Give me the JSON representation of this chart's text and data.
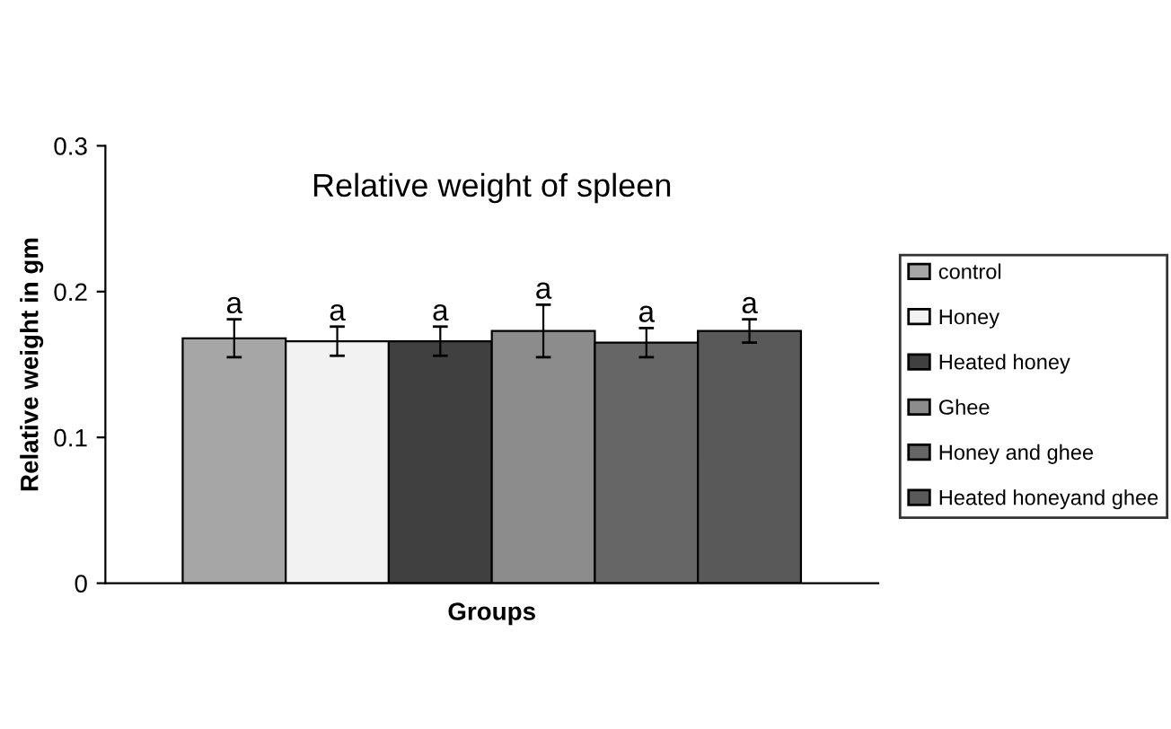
{
  "chart_data": {
    "type": "bar",
    "title": "Relative weight of spleen",
    "xlabel": "Groups",
    "ylabel": "Relative weight in gm",
    "categories": [
      null
    ],
    "series": [
      {
        "name": "control",
        "color": "#a6a6a6",
        "values": [
          0.168
        ],
        "errors": [
          0.013
        ]
      },
      {
        "name": "Honey",
        "color": "#f2f2f2",
        "values": [
          0.166
        ],
        "errors": [
          0.01
        ]
      },
      {
        "name": "Heated honey",
        "color": "#404040",
        "values": [
          0.166
        ],
        "errors": [
          0.01
        ]
      },
      {
        "name": "Ghee",
        "color": "#8c8c8c",
        "values": [
          0.173
        ],
        "errors": [
          0.018
        ]
      },
      {
        "name": "Honey and ghee",
        "color": "#666666",
        "values": [
          0.165
        ],
        "errors": [
          0.01
        ]
      },
      {
        "name": "Heated honeyand ghee",
        "color": "#595959",
        "values": [
          0.173
        ],
        "errors": [
          0.008
        ]
      }
    ],
    "annotations": [
      "a",
      "a",
      "a",
      "a",
      "a",
      "a"
    ],
    "ylim": [
      0,
      0.3
    ],
    "yticks": [
      {
        "value": 0,
        "label": "0"
      },
      0.1,
      0.2,
      0.3
    ],
    "grid": false,
    "legend": "right"
  }
}
